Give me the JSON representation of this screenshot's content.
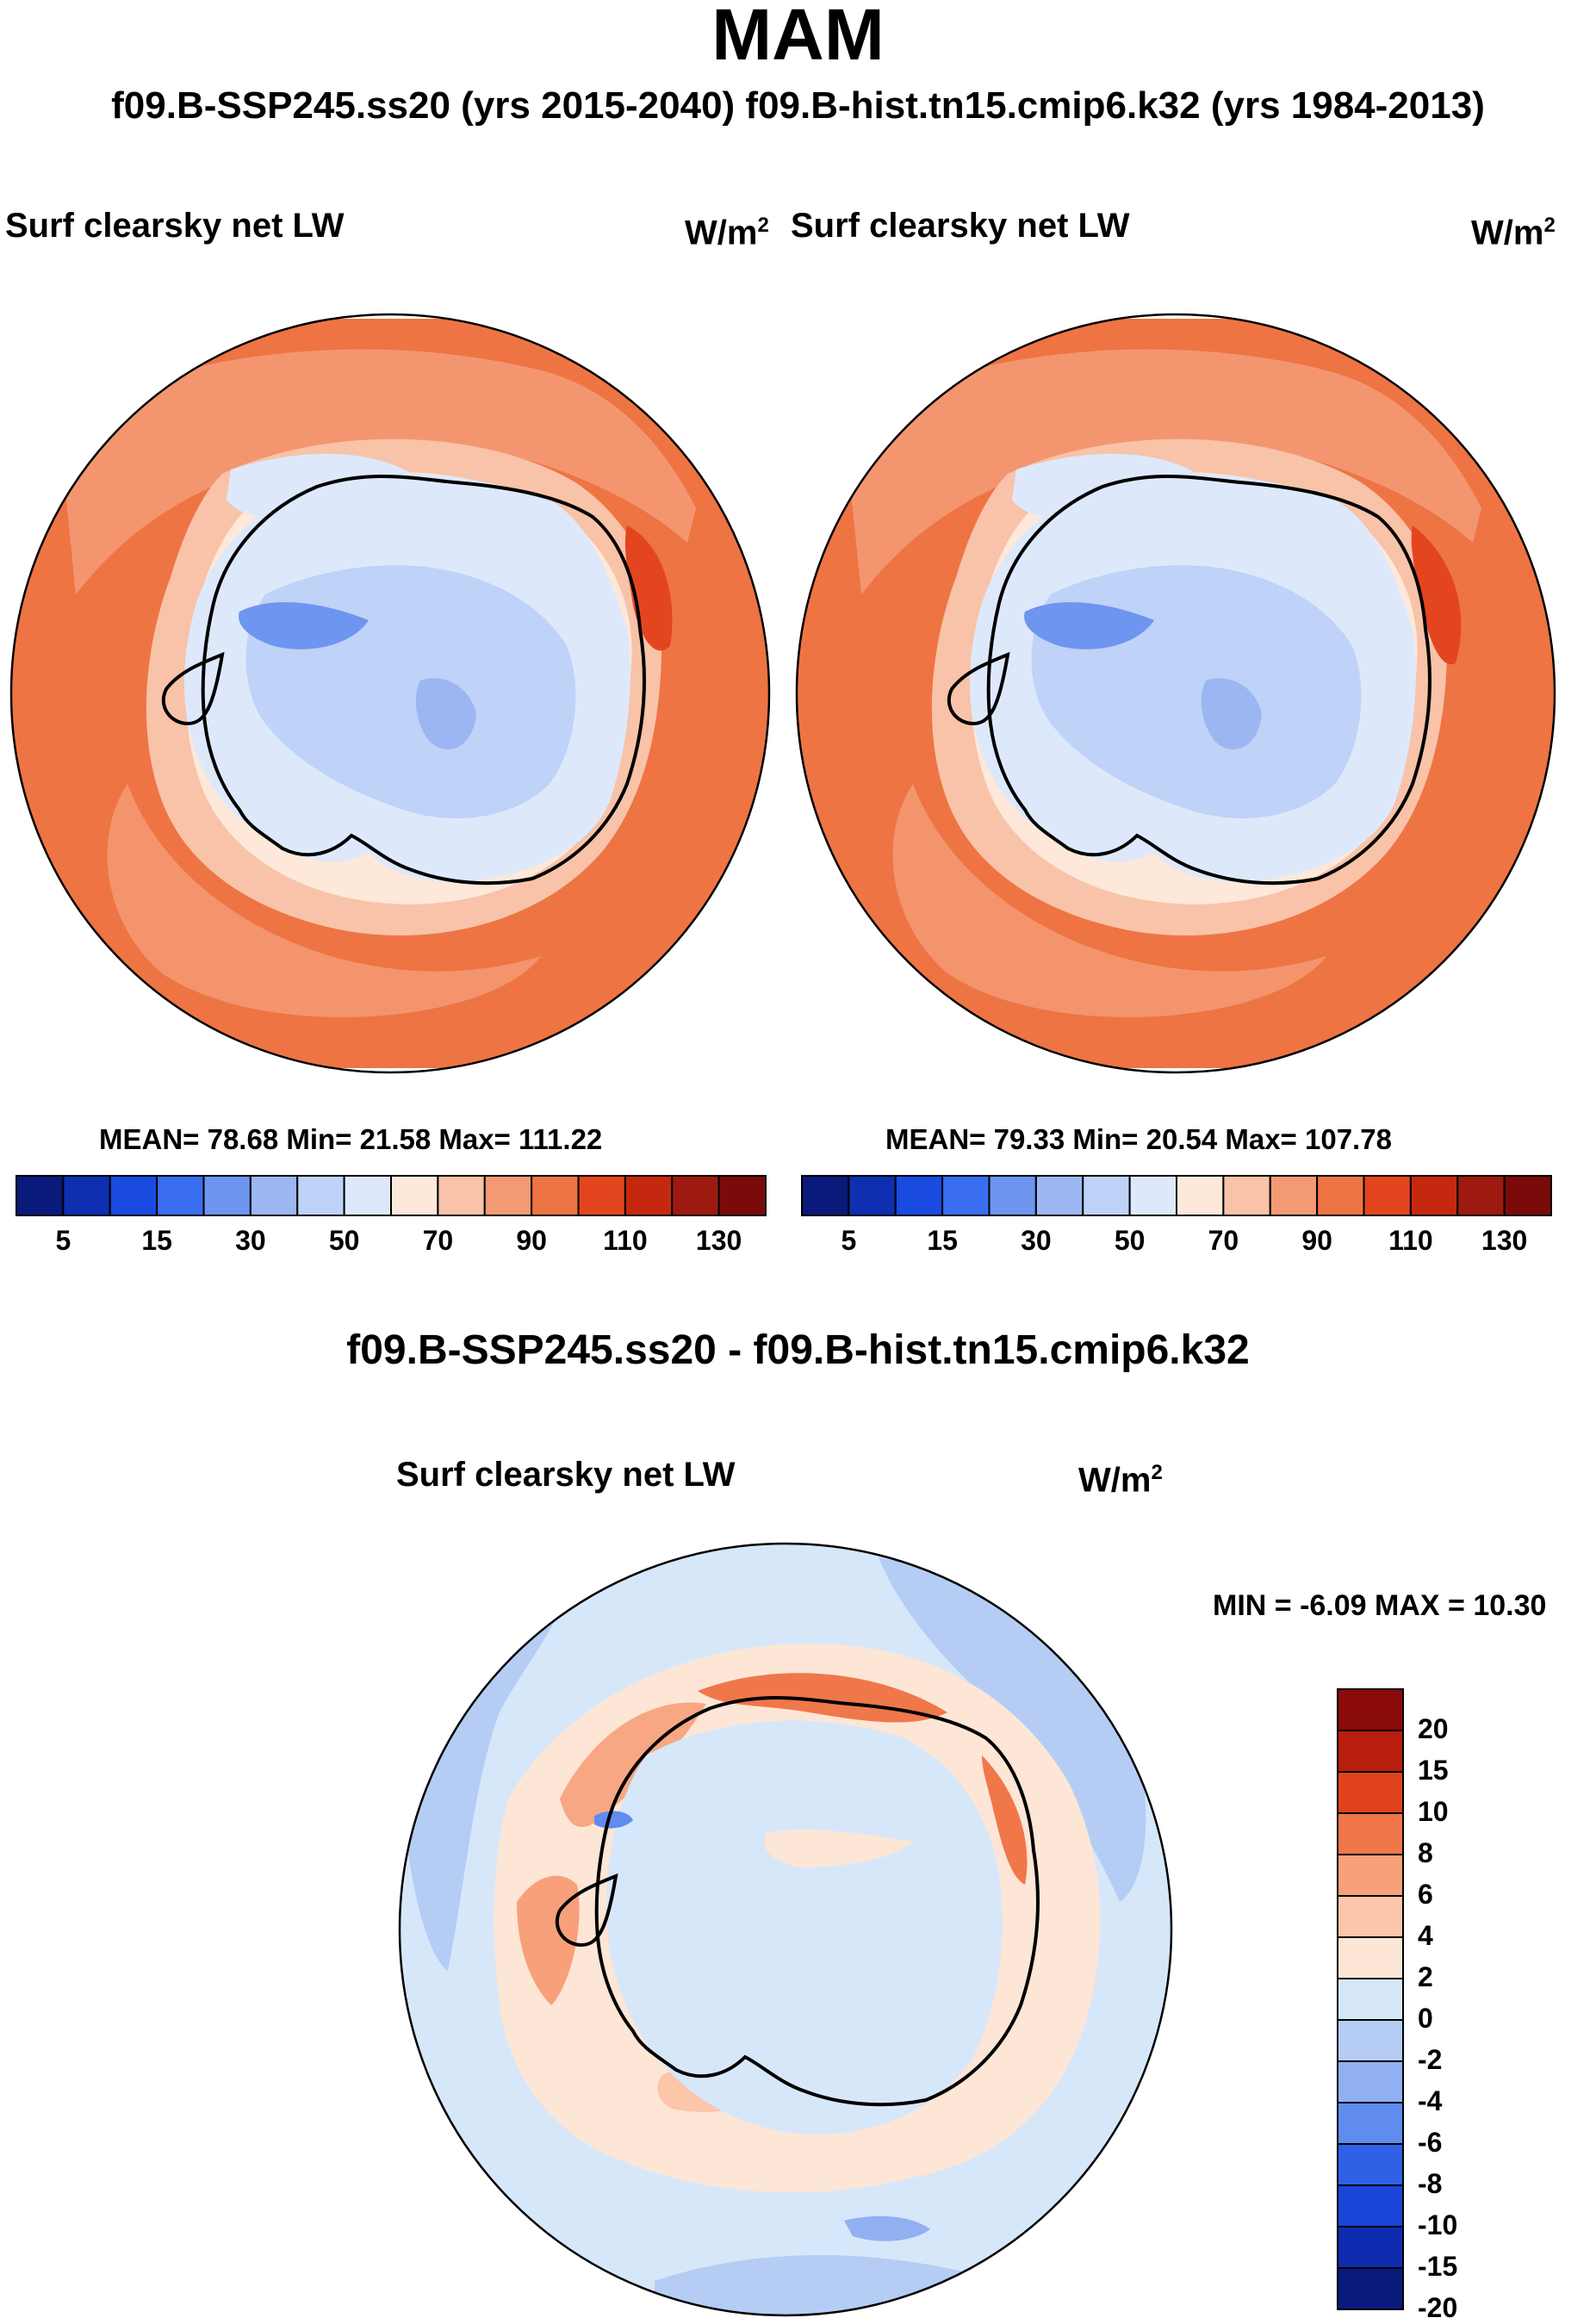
{
  "figure": {
    "title": "MAM",
    "case_header": "f09.B-SSP245.ss20 (yrs 2015-2040)  f09.B-hist.tn15.cmip6.k32 (yrs 1984-2013)",
    "diff_title": "f09.B-SSP245.ss20 - f09.B-hist.tn15.cmip6.k32"
  },
  "panels": [
    {
      "title": "Surf clearsky net LW",
      "units_base": "W/m",
      "units_exp": "2",
      "stats": "MEAN=  78.68  Min=  21.58  Max= 111.22"
    },
    {
      "title": "Surf clearsky net LW",
      "units_base": "W/m",
      "units_exp": "2",
      "stats": "MEAN=  79.33  Min=  20.54  Max= 107.78"
    },
    {
      "title": "Surf clearsky net LW",
      "units_base": "W/m",
      "units_exp": "2",
      "stats": "MIN =  -6.09 MAX =  10.30"
    }
  ],
  "colorbars": {
    "abs_labels": [
      "5",
      "15",
      "30",
      "50",
      "70",
      "90",
      "110",
      "130"
    ],
    "abs_colors": [
      "#0a1a7a",
      "#0d2fb0",
      "#1a4be0",
      "#3a6ef0",
      "#6e95ef",
      "#9cb6f2",
      "#bfd2f7",
      "#dde9fb",
      "#fde8da",
      "#f8c3a8",
      "#f39a74",
      "#ee7444",
      "#e3461f",
      "#c4290f",
      "#9e1a10",
      "#7b0b0b"
    ],
    "diff_labels": [
      "20",
      "15",
      "10",
      "8",
      "6",
      "4",
      "2",
      "0",
      "-2",
      "-4",
      "-6",
      "-8",
      "-10",
      "-15",
      "-20"
    ],
    "diff_colors": [
      "#8b0a0a",
      "#b81e0e",
      "#e0431c",
      "#f0774a",
      "#f7a07a",
      "#fbc6aa",
      "#fde6d6",
      "#d7e7fa",
      "#b5cdf5",
      "#91b0f1",
      "#5f8cee",
      "#2f60e6",
      "#1a45d6",
      "#0e2bb0",
      "#0a1a7a"
    ]
  },
  "chart_data": [
    {
      "type": "heatmap",
      "title": "Surf clearsky net LW",
      "subtitle": "f09.B-SSP245.ss20 (yrs 2015-2040)",
      "units": "W/m2",
      "projection": "south polar stereographic",
      "levels": [
        5,
        10,
        15,
        20,
        30,
        40,
        50,
        60,
        70,
        80,
        90,
        100,
        110,
        120,
        130
      ],
      "stats": {
        "mean": 78.68,
        "min": 21.58,
        "max": 111.22
      }
    },
    {
      "type": "heatmap",
      "title": "Surf clearsky net LW",
      "subtitle": "f09.B-hist.tn15.cmip6.k32 (yrs 1984-2013)",
      "units": "W/m2",
      "projection": "south polar stereographic",
      "levels": [
        5,
        10,
        15,
        20,
        30,
        40,
        50,
        60,
        70,
        80,
        90,
        100,
        110,
        120,
        130
      ],
      "stats": {
        "mean": 79.33,
        "min": 20.54,
        "max": 107.78
      }
    },
    {
      "type": "heatmap",
      "title": "Surf clearsky net LW",
      "subtitle": "f09.B-SSP245.ss20 - f09.B-hist.tn15.cmip6.k32",
      "units": "W/m2",
      "projection": "south polar stereographic",
      "levels": [
        -20,
        -15,
        -10,
        -8,
        -6,
        -4,
        -2,
        0,
        2,
        4,
        6,
        8,
        10,
        15,
        20
      ],
      "stats": {
        "min": -6.09,
        "max": 10.3
      }
    }
  ]
}
